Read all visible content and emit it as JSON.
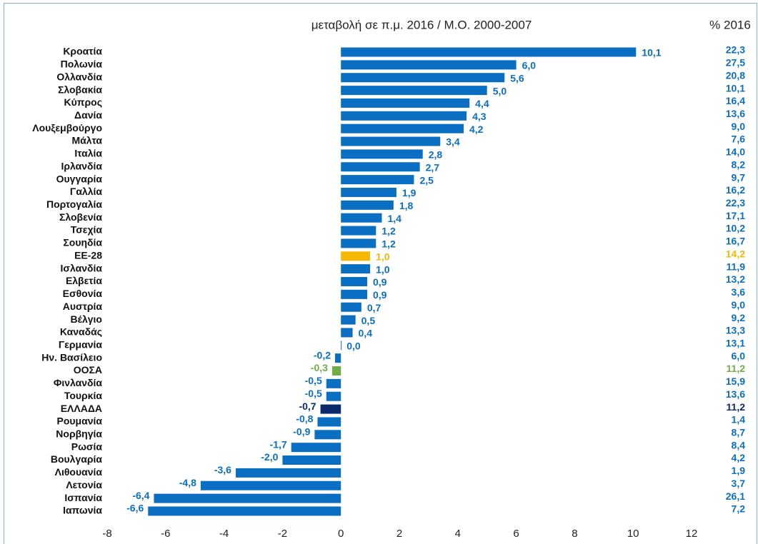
{
  "chart_data": {
    "type": "hbar",
    "title": "μεταβολή σε π.μ. 2016 / Μ.Ο. 2000-2007",
    "categories": [
      "Κροατία",
      "Πολωνία",
      "Ολλανδία",
      "Σλοβακία",
      "Κύπρος",
      "Δανία",
      "Λουξεμβούργο",
      "Μάλτα",
      "Ιταλία",
      "Ιρλανδία",
      "Ουγγαρία",
      "Γαλλία",
      "Πορτογαλία",
      "Σλοβενία",
      "Τσεχία",
      "Σουηδία",
      "ΕΕ-28",
      "Ισλανδία",
      "Ελβετία",
      "Εσθονία",
      "Αυστρία",
      "Βέλγιο",
      "Καναδάς",
      "Γερμανία",
      "Ην. Βασίλειο",
      "ΟΟΣΑ",
      "Φινλανδία",
      "Τουρκία",
      "ΕΛΛΑΔΑ",
      "Ρουμανία",
      "Νορβηγία",
      "Ρωσία",
      "Βουλγαρία",
      "Λιθουανία",
      "Λετονία",
      "Ισπανία",
      "Ιαπωνία"
    ],
    "values": [
      10.1,
      6.0,
      5.6,
      5.0,
      4.4,
      4.3,
      4.2,
      3.4,
      2.8,
      2.7,
      2.5,
      1.9,
      1.8,
      1.4,
      1.2,
      1.2,
      1.0,
      1.0,
      0.9,
      0.9,
      0.7,
      0.5,
      0.4,
      0.0,
      -0.2,
      -0.3,
      -0.5,
      -0.5,
      -0.7,
      -0.8,
      -0.9,
      -1.7,
      -2.0,
      -3.6,
      -4.8,
      -6.4,
      -6.6
    ],
    "value_labels": [
      "10,1",
      "6,0",
      "5,6",
      "5,0",
      "4,4",
      "4,3",
      "4,2",
      "3,4",
      "2,8",
      "2,7",
      "2,5",
      "1,9",
      "1,8",
      "1,4",
      "1,2",
      "1,2",
      "1,0",
      "1,0",
      "0,9",
      "0,9",
      "0,7",
      "0,5",
      "0,4",
      "0,0",
      "-0,2",
      "-0,3",
      "-0,5",
      "-0,5",
      "-0,7",
      "-0,8",
      "-0,9",
      "-1,7",
      "-2,0",
      "-3,6",
      "-4,8",
      "-6,4",
      "-6,6"
    ],
    "colors": [
      "#0a6fc2",
      "#0a6fc2",
      "#0a6fc2",
      "#0a6fc2",
      "#0a6fc2",
      "#0a6fc2",
      "#0a6fc2",
      "#0a6fc2",
      "#0a6fc2",
      "#0a6fc2",
      "#0a6fc2",
      "#0a6fc2",
      "#0a6fc2",
      "#0a6fc2",
      "#0a6fc2",
      "#0a6fc2",
      "#f5b800",
      "#0a6fc2",
      "#0a6fc2",
      "#0a6fc2",
      "#0a6fc2",
      "#0a6fc2",
      "#0a6fc2",
      "#0a6fc2",
      "#0a6fc2",
      "#70ad47",
      "#0a6fc2",
      "#0a6fc2",
      "#0c2a6b",
      "#0a6fc2",
      "#0a6fc2",
      "#0a6fc2",
      "#0a6fc2",
      "#0a6fc2",
      "#0a6fc2",
      "#0a6fc2",
      "#0a6fc2"
    ],
    "xlim": [
      -8,
      12
    ],
    "xticks": [
      -8,
      -6,
      -4,
      -2,
      0,
      2,
      4,
      6,
      8,
      10,
      12
    ],
    "column": {
      "title": "% 2016",
      "values": [
        22.3,
        27.5,
        20.8,
        10.1,
        16.4,
        13.6,
        9.0,
        7.6,
        14.0,
        8.2,
        9.7,
        16.2,
        22.3,
        17.1,
        10.2,
        16.7,
        14.2,
        11.9,
        13.2,
        3.6,
        9.0,
        9.2,
        13.3,
        13.1,
        6.0,
        11.2,
        15.9,
        13.6,
        11.2,
        1.4,
        8.7,
        8.4,
        4.2,
        1.9,
        3.7,
        26.1,
        7.2
      ],
      "value_labels": [
        "22,3",
        "27,5",
        "20,8",
        "10,1",
        "16,4",
        "13,6",
        "9,0",
        "7,6",
        "14,0",
        "8,2",
        "9,7",
        "16,2",
        "22,3",
        "17,1",
        "10,2",
        "16,7",
        "14,2",
        "11,9",
        "13,2",
        "3,6",
        "9,0",
        "9,2",
        "13,3",
        "13,1",
        "6,0",
        "11,2",
        "15,9",
        "13,6",
        "11,2",
        "1,4",
        "8,7",
        "8,4",
        "4,2",
        "1,9",
        "3,7",
        "26,1",
        "7,2"
      ]
    }
  }
}
